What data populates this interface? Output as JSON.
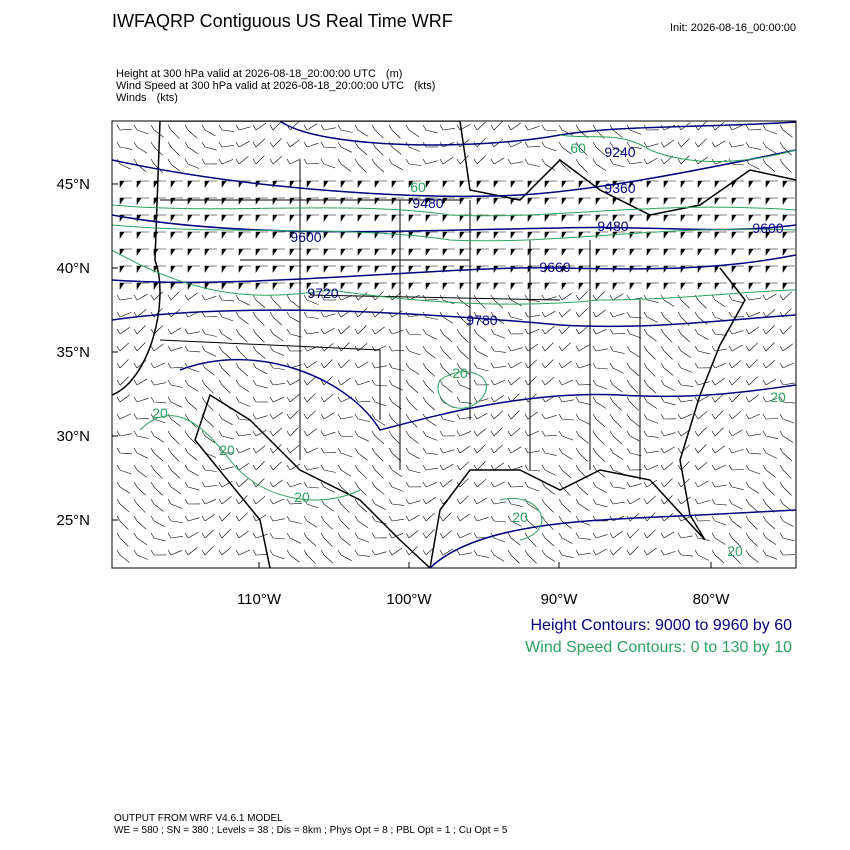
{
  "header": {
    "title": "IWFAQRP Contiguous US Real Time WRF",
    "init": "Init: 2026-08-16_00:00:00"
  },
  "fields": [
    {
      "name": "Height at 300 hPa valid at 2026-08-18_20:00:00 UTC",
      "units": "(m)"
    },
    {
      "name": "Wind Speed at 300 hPa valid at 2026-08-18_20:00:00 UTC",
      "units": "(kts)"
    },
    {
      "name": "Winds",
      "units": "(kts)"
    }
  ],
  "map": {
    "lat_labels": [
      "45°N",
      "40°N",
      "35°N",
      "30°N",
      "25°N"
    ],
    "lon_labels": [
      "110°W",
      "100°W",
      "90°W",
      "80°W"
    ],
    "height_labels": [
      "9240",
      "9360",
      "9480",
      "9480",
      "9600",
      "9600",
      "9660",
      "9720",
      "9780"
    ],
    "wind_labels": [
      "60",
      "60",
      "20",
      "20",
      "20",
      "20",
      "20",
      "20",
      "20"
    ]
  },
  "legend": {
    "height": "Height Contours: 9000 to 9960 by 60",
    "wind": "Wind Speed Contours: 0 to 130 by 10"
  },
  "footer": {
    "model": "OUTPUT FROM WRF V4.6.1 MODEL",
    "config": "WE = 580 ; SN = 380 ; Levels = 38 ; Dis = 8km ; Phys Opt = 8 ; PBL Opt = 1 ; Cu Opt = 5"
  }
}
